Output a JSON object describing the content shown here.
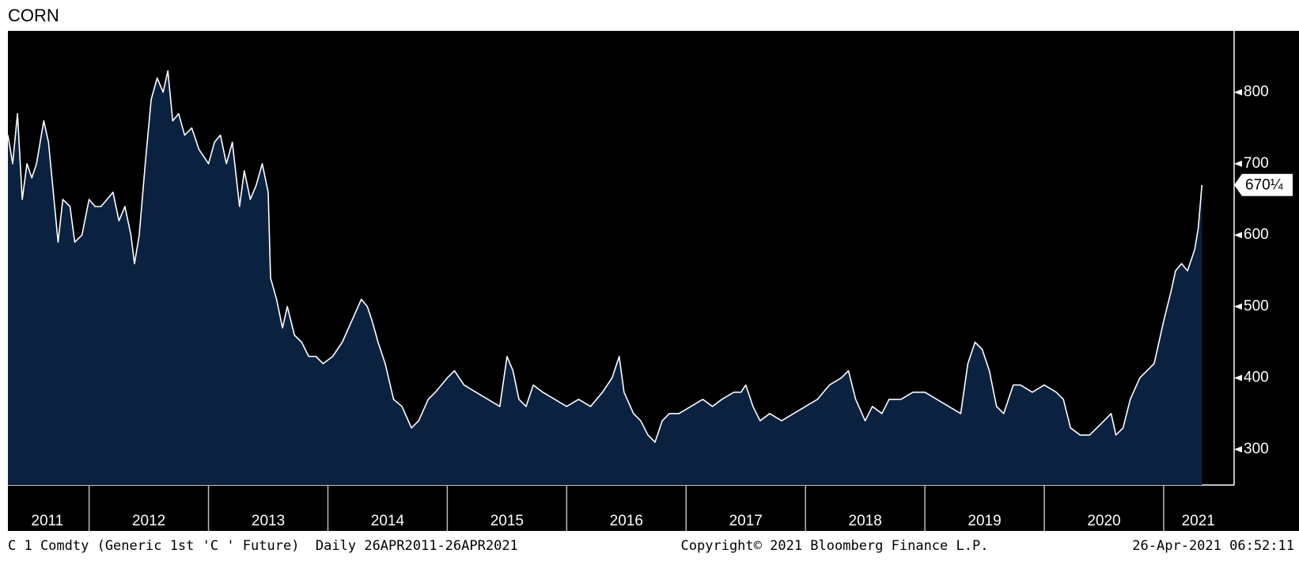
{
  "chart_data": {
    "type": "area",
    "title": "CORN",
    "footer_left": "C 1 Comdty (Generic 1st 'C ' Future)  Daily 26APR2011-26APR2021",
    "footer_center": "Copyright© 2021 Bloomberg Finance L.P.",
    "footer_right": "26-Apr-2021 06:52:11",
    "line_color": "#ffffff",
    "fill_color": "#0b2140",
    "background": "#000000",
    "axis_side": "right",
    "xlim": [
      2011.32,
      2021.59
    ],
    "ylim": [
      250,
      886
    ],
    "yticks": [
      300,
      400,
      500,
      600,
      700,
      800
    ],
    "year_bounds": [
      2012,
      2013,
      2014,
      2015,
      2016,
      2017,
      2018,
      2019,
      2020,
      2021
    ],
    "xticks": [
      {
        "value": 2011.65,
        "label": "2011"
      },
      {
        "value": 2012.5,
        "label": "2012"
      },
      {
        "value": 2013.5,
        "label": "2013"
      },
      {
        "value": 2014.5,
        "label": "2014"
      },
      {
        "value": 2015.5,
        "label": "2015"
      },
      {
        "value": 2016.5,
        "label": "2016"
      },
      {
        "value": 2017.5,
        "label": "2017"
      },
      {
        "value": 2018.5,
        "label": "2018"
      },
      {
        "value": 2019.5,
        "label": "2019"
      },
      {
        "value": 2020.5,
        "label": "2020"
      },
      {
        "value": 2021.29,
        "label": "2021"
      }
    ],
    "last_value": 670.25,
    "last_value_label": "670¼",
    "x": [
      2011.32,
      2011.36,
      2011.4,
      2011.44,
      2011.48,
      2011.52,
      2011.56,
      2011.62,
      2011.66,
      2011.7,
      2011.74,
      2011.78,
      2011.84,
      2011.88,
      2011.94,
      2012.0,
      2012.05,
      2012.1,
      2012.15,
      2012.2,
      2012.25,
      2012.3,
      2012.35,
      2012.38,
      2012.42,
      2012.47,
      2012.52,
      2012.57,
      2012.62,
      2012.66,
      2012.7,
      2012.75,
      2012.8,
      2012.86,
      2012.92,
      2013.0,
      2013.05,
      2013.1,
      2013.15,
      2013.2,
      2013.26,
      2013.3,
      2013.35,
      2013.4,
      2013.45,
      2013.5,
      2013.52,
      2013.57,
      2013.62,
      2013.66,
      2013.72,
      2013.78,
      2013.84,
      2013.9,
      2013.96,
      2014.04,
      2014.12,
      2014.2,
      2014.28,
      2014.33,
      2014.37,
      2014.42,
      2014.48,
      2014.55,
      2014.62,
      2014.7,
      2014.76,
      2014.84,
      2014.9,
      2015.0,
      2015.06,
      2015.14,
      2015.24,
      2015.34,
      2015.44,
      2015.5,
      2015.55,
      2015.6,
      2015.66,
      2015.72,
      2015.8,
      2015.9,
      2016.0,
      2016.1,
      2016.2,
      2016.3,
      2016.38,
      2016.44,
      2016.48,
      2016.56,
      2016.62,
      2016.68,
      2016.74,
      2016.8,
      2016.86,
      2016.94,
      2017.04,
      2017.14,
      2017.22,
      2017.3,
      2017.4,
      2017.46,
      2017.5,
      2017.56,
      2017.62,
      2017.7,
      2017.8,
      2017.9,
      2018.0,
      2018.1,
      2018.2,
      2018.3,
      2018.36,
      2018.42,
      2018.5,
      2018.56,
      2018.64,
      2018.7,
      2018.8,
      2018.9,
      2019.0,
      2019.1,
      2019.2,
      2019.3,
      2019.36,
      2019.42,
      2019.48,
      2019.54,
      2019.6,
      2019.66,
      2019.74,
      2019.8,
      2019.9,
      2020.0,
      2020.1,
      2020.16,
      2020.22,
      2020.3,
      2020.38,
      2020.44,
      2020.5,
      2020.56,
      2020.6,
      2020.66,
      2020.72,
      2020.8,
      2020.86,
      2020.92,
      2021.0,
      2021.06,
      2021.1,
      2021.15,
      2021.2,
      2021.26,
      2021.29,
      2021.32
    ],
    "values": [
      740,
      700,
      770,
      650,
      700,
      680,
      700,
      760,
      730,
      660,
      590,
      650,
      640,
      590,
      600,
      650,
      640,
      640,
      650,
      660,
      620,
      640,
      600,
      560,
      600,
      700,
      790,
      820,
      800,
      830,
      760,
      770,
      740,
      750,
      720,
      700,
      730,
      740,
      700,
      730,
      640,
      690,
      650,
      670,
      700,
      660,
      540,
      510,
      470,
      500,
      460,
      450,
      430,
      430,
      420,
      430,
      450,
      480,
      510,
      500,
      480,
      450,
      420,
      370,
      360,
      330,
      340,
      370,
      380,
      400,
      410,
      390,
      380,
      370,
      360,
      430,
      410,
      370,
      360,
      390,
      380,
      370,
      360,
      370,
      360,
      380,
      400,
      430,
      380,
      350,
      340,
      320,
      310,
      340,
      350,
      350,
      360,
      370,
      360,
      370,
      380,
      380,
      390,
      360,
      340,
      350,
      340,
      350,
      360,
      370,
      390,
      400,
      410,
      370,
      340,
      360,
      350,
      370,
      370,
      380,
      380,
      370,
      360,
      350,
      420,
      450,
      440,
      410,
      360,
      350,
      390,
      390,
      380,
      390,
      380,
      370,
      330,
      320,
      320,
      330,
      340,
      350,
      320,
      330,
      370,
      400,
      410,
      420,
      480,
      520,
      550,
      560,
      550,
      580,
      610,
      670.25
    ]
  }
}
